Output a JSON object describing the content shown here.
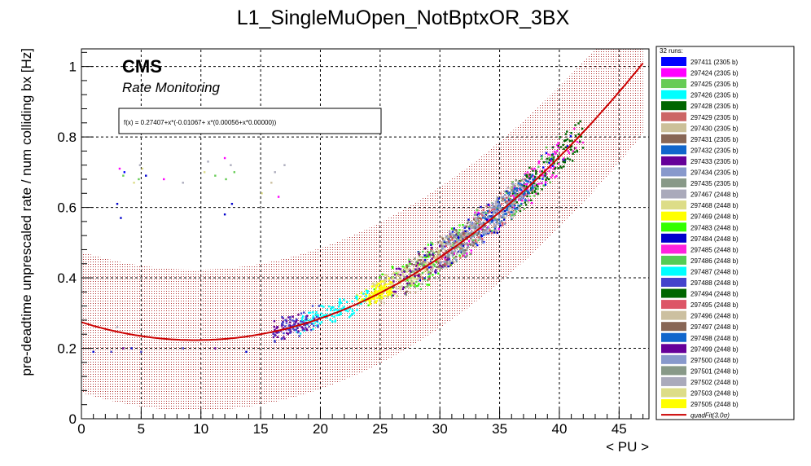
{
  "chart_data": {
    "type": "scatter",
    "title": "L1_SingleMuOpen_NotBptxOR_3BX",
    "xlabel": "< PU >",
    "ylabel": "pre-deadtime unprescaled rate / num colliding bx [Hz]",
    "xlim": [
      0,
      47.5
    ],
    "ylim": [
      0,
      1.05
    ],
    "x_ticks": [
      0,
      5,
      10,
      15,
      20,
      25,
      30,
      35,
      40,
      45
    ],
    "y_ticks": [
      0,
      0.2,
      0.4,
      0.6,
      0.8,
      1
    ],
    "y_tick_labels": [
      "0",
      "0.2",
      "0.4",
      "0.6",
      "0.8",
      "1"
    ],
    "grid": true,
    "cms_label": "CMS",
    "sub_label": "Rate Monitoring",
    "fit_formula": "f(x) = 0.27407+x*(-0.01067+ x*(0.00056+x*0.00000))",
    "fit": {
      "name": "quadFit(3.0σ)",
      "coeffs": [
        0.27407,
        -0.01067,
        0.00056
      ],
      "band_sigma": 0.2,
      "color": "#cc0000",
      "x_start": 0,
      "x_end": 47
    },
    "legend_header": "32 runs:",
    "legend_position": "right",
    "series": [
      {
        "name": "297411 (2305 b)",
        "color": "#0000ff",
        "pu": [
          29,
          41
        ],
        "spread": 0.05
      },
      {
        "name": "297424 (2305 b)",
        "color": "#ff00ff",
        "pu": [
          30,
          40
        ],
        "spread": 0.05
      },
      {
        "name": "297425 (2305 b)",
        "color": "#66cc55",
        "pu": [
          27,
          40
        ],
        "spread": 0.05
      },
      {
        "name": "297426 (2305 b)",
        "color": "#00ffff",
        "pu": [
          18,
          22
        ],
        "spread": 0.02
      },
      {
        "name": "297428 (2305 b)",
        "color": "#006600",
        "pu": [
          36,
          42
        ],
        "spread": 0.04
      },
      {
        "name": "297429 (2305 b)",
        "color": "#cc6666",
        "pu": [
          28,
          38
        ],
        "spread": 0.04
      },
      {
        "name": "297430 (2305 b)",
        "color": "#ccc099",
        "pu": [
          27,
          38
        ],
        "spread": 0.05
      },
      {
        "name": "297431 (2305 b)",
        "color": "#886655",
        "pu": [
          29,
          37
        ],
        "spread": 0.04
      },
      {
        "name": "297432 (2305 b)",
        "color": "#1166cc",
        "pu": [
          33,
          38
        ],
        "spread": 0.03
      },
      {
        "name": "297433 (2305 b)",
        "color": "#660099",
        "pu": [
          16,
          19
        ],
        "spread": 0.02
      },
      {
        "name": "297434 (2305 b)",
        "color": "#8899cc",
        "pu": [
          30,
          37
        ],
        "spread": 0.04
      },
      {
        "name": "297435 (2305 b)",
        "color": "#889988",
        "pu": [
          31,
          38
        ],
        "spread": 0.04
      },
      {
        "name": "297467 (2448 b)",
        "color": "#aaaabb",
        "pu": [
          30,
          36
        ],
        "spread": 0.04
      },
      {
        "name": "297468 (2448 b)",
        "color": "#dddd88",
        "pu": [
          23,
          29
        ],
        "spread": 0.03
      },
      {
        "name": "297469 (2448 b)",
        "color": "#ffff00",
        "pu": [
          23,
          26
        ],
        "spread": 0.015
      },
      {
        "name": "297483 (2448 b)",
        "color": "#33ff00",
        "pu": [
          24,
          32
        ],
        "spread": 0.05
      },
      {
        "name": "297484 (2448 b)",
        "color": "#0000cc",
        "pu": [
          28,
          36
        ],
        "spread": 0.05
      },
      {
        "name": "297485 (2448 b)",
        "color": "#ff22dd",
        "pu": [
          36,
          42
        ],
        "spread": 0.04
      },
      {
        "name": "297486 (2448 b)",
        "color": "#55cc55",
        "pu": [
          27,
          40
        ],
        "spread": 0.05
      },
      {
        "name": "297487 (2448 b)",
        "color": "#00ffff",
        "pu": [
          19,
          24
        ],
        "spread": 0.02
      },
      {
        "name": "297488 (2448 b)",
        "color": "#4444cc",
        "pu": [
          16,
          20
        ],
        "spread": 0.03
      },
      {
        "name": "297494 (2448 b)",
        "color": "#006600",
        "pu": [
          37,
          42
        ],
        "spread": 0.04
      },
      {
        "name": "297495 (2448 b)",
        "color": "#dd5566",
        "pu": [
          28,
          36
        ],
        "spread": 0.04
      },
      {
        "name": "297496 (2448 b)",
        "color": "#ccc0a0",
        "pu": [
          25,
          33
        ],
        "spread": 0.04
      },
      {
        "name": "297497 (2448 b)",
        "color": "#886655",
        "pu": [
          27,
          34
        ],
        "spread": 0.04
      },
      {
        "name": "297498 (2448 b)",
        "color": "#1166cc",
        "pu": [
          34,
          38
        ],
        "spread": 0.03
      },
      {
        "name": "297499 (2448 b)",
        "color": "#660099",
        "pu": [
          26,
          31
        ],
        "spread": 0.04
      },
      {
        "name": "297500 (2448 b)",
        "color": "#8899cc",
        "pu": [
          30,
          36
        ],
        "spread": 0.04
      },
      {
        "name": "297501 (2448 b)",
        "color": "#889988",
        "pu": [
          27,
          33
        ],
        "spread": 0.05
      },
      {
        "name": "297502 (2448 b)",
        "color": "#aaaabb",
        "pu": [
          31,
          37
        ],
        "spread": 0.04
      },
      {
        "name": "297503 (2448 b)",
        "color": "#dddd88",
        "pu": [
          25,
          30
        ],
        "spread": 0.03
      },
      {
        "name": "297505 (2448 b)",
        "color": "#ffff00",
        "pu": [
          24,
          26
        ],
        "spread": 0.015
      }
    ],
    "outliers": [
      {
        "x": 1,
        "y": 0.19,
        "c": "#0000cc"
      },
      {
        "x": 2.5,
        "y": 0.19,
        "c": "#4444cc"
      },
      {
        "x": 3,
        "y": 0.26,
        "c": "#aaaabb"
      },
      {
        "x": 3.5,
        "y": 0.2,
        "c": "#660099"
      },
      {
        "x": 4.2,
        "y": 0.2,
        "c": "#0000cc"
      },
      {
        "x": 5,
        "y": 0.19,
        "c": "#4444cc"
      },
      {
        "x": 3,
        "y": 0.61,
        "c": "#0000cc"
      },
      {
        "x": 3.3,
        "y": 0.57,
        "c": "#0000cc"
      },
      {
        "x": 3.2,
        "y": 0.71,
        "c": "#ff00ff"
      },
      {
        "x": 3.5,
        "y": 0.69,
        "c": "#66cc55"
      },
      {
        "x": 3.6,
        "y": 0.7,
        "c": "#0000ff"
      },
      {
        "x": 4.4,
        "y": 0.67,
        "c": "#dddd88"
      },
      {
        "x": 4.8,
        "y": 0.68,
        "c": "#66cc55"
      },
      {
        "x": 4.9,
        "y": 0.72,
        "c": "#aaaabb"
      },
      {
        "x": 5.4,
        "y": 0.69,
        "c": "#0000cc"
      },
      {
        "x": 5.1,
        "y": 0.71,
        "c": "#dddd88"
      },
      {
        "x": 6.9,
        "y": 0.68,
        "c": "#ff00ff"
      },
      {
        "x": 8.5,
        "y": 0.67,
        "c": "#aaaabb"
      },
      {
        "x": 10.6,
        "y": 0.73,
        "c": "#aaaabb"
      },
      {
        "x": 10.3,
        "y": 0.7,
        "c": "#dddd88"
      },
      {
        "x": 11.2,
        "y": 0.69,
        "c": "#66cc55"
      },
      {
        "x": 12,
        "y": 0.74,
        "c": "#ff00ff"
      },
      {
        "x": 12.1,
        "y": 0.68,
        "c": "#66cc55"
      },
      {
        "x": 12.5,
        "y": 0.72,
        "c": "#aaaabb"
      },
      {
        "x": 12.8,
        "y": 0.7,
        "c": "#66cc55"
      },
      {
        "x": 12,
        "y": 0.58,
        "c": "#0000cc"
      },
      {
        "x": 12.6,
        "y": 0.61,
        "c": "#0000cc"
      },
      {
        "x": 15.1,
        "y": 0.64,
        "c": "#dddd88"
      },
      {
        "x": 15.9,
        "y": 0.67,
        "c": "#ccc0a0"
      },
      {
        "x": 16.2,
        "y": 0.7,
        "c": "#aaaabb"
      },
      {
        "x": 16.5,
        "y": 0.63,
        "c": "#ff00ff"
      },
      {
        "x": 17,
        "y": 0.72,
        "c": "#aaaabb"
      },
      {
        "x": 8.5,
        "y": 0.2,
        "c": "#4444cc"
      },
      {
        "x": 11.2,
        "y": 0.2,
        "c": "#660099"
      },
      {
        "x": 13.8,
        "y": 0.19,
        "c": "#0000cc"
      }
    ]
  }
}
